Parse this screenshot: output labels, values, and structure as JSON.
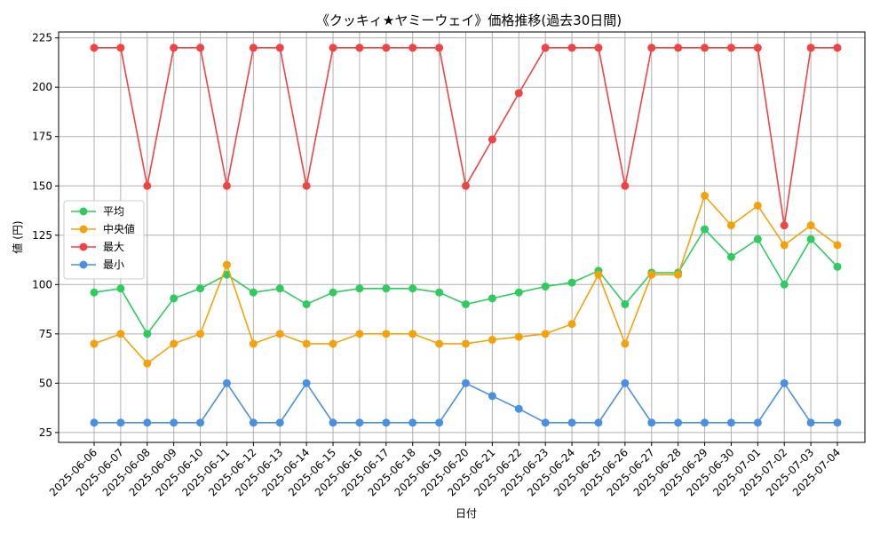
{
  "chart_data": {
    "type": "line",
    "title": "《クッキィ★ヤミーウェイ》価格推移(過去30日間)",
    "xlabel": "日付",
    "ylabel": "値 (円)",
    "ylim": [
      20,
      228
    ],
    "yticks": [
      25,
      50,
      75,
      100,
      125,
      150,
      175,
      200,
      225
    ],
    "grid": true,
    "legend_position": "center-left",
    "categories": [
      "2025-06-06",
      "2025-06-07",
      "2025-06-08",
      "2025-06-09",
      "2025-06-10",
      "2025-06-11",
      "2025-06-12",
      "2025-06-13",
      "2025-06-14",
      "2025-06-15",
      "2025-06-16",
      "2025-06-17",
      "2025-06-18",
      "2025-06-19",
      "2025-06-20",
      "2025-06-21",
      "2025-06-22",
      "2025-06-23",
      "2025-06-24",
      "2025-06-25",
      "2025-06-26",
      "2025-06-27",
      "2025-06-28",
      "2025-06-29",
      "2025-06-30",
      "2025-07-01",
      "2025-07-02",
      "2025-07-03",
      "2025-07-04"
    ],
    "series": [
      {
        "name": "平均",
        "color": "#2ecc5f",
        "values": [
          96,
          98,
          75,
          93,
          98,
          105,
          96,
          98,
          90,
          96,
          98,
          98,
          98,
          96,
          90,
          93,
          96,
          99,
          101,
          107,
          90,
          106,
          106,
          128,
          114,
          123,
          100,
          123,
          109
        ]
      },
      {
        "name": "中央値",
        "color": "#f5a20a",
        "values": [
          70,
          75,
          60,
          70,
          75,
          110,
          70,
          75,
          70,
          70,
          75,
          75,
          75,
          70,
          70,
          72,
          73.5,
          75,
          80,
          105,
          70,
          105,
          105,
          145,
          130,
          140,
          120,
          130,
          120
        ]
      },
      {
        "name": "最大",
        "color": "#ef4444",
        "values": [
          220,
          220,
          150,
          220,
          220,
          150,
          220,
          220,
          150,
          220,
          220,
          220,
          220,
          220,
          150,
          173.5,
          197,
          220,
          220,
          220,
          150,
          220,
          220,
          220,
          220,
          220,
          130,
          220,
          220
        ]
      },
      {
        "name": "最小",
        "color": "#4a90e2",
        "values": [
          30,
          30,
          30,
          30,
          30,
          50,
          30,
          30,
          50,
          30,
          30,
          30,
          30,
          30,
          50,
          43.5,
          37,
          30,
          30,
          30,
          50,
          30,
          30,
          30,
          30,
          30,
          50,
          30,
          30
        ]
      }
    ]
  }
}
